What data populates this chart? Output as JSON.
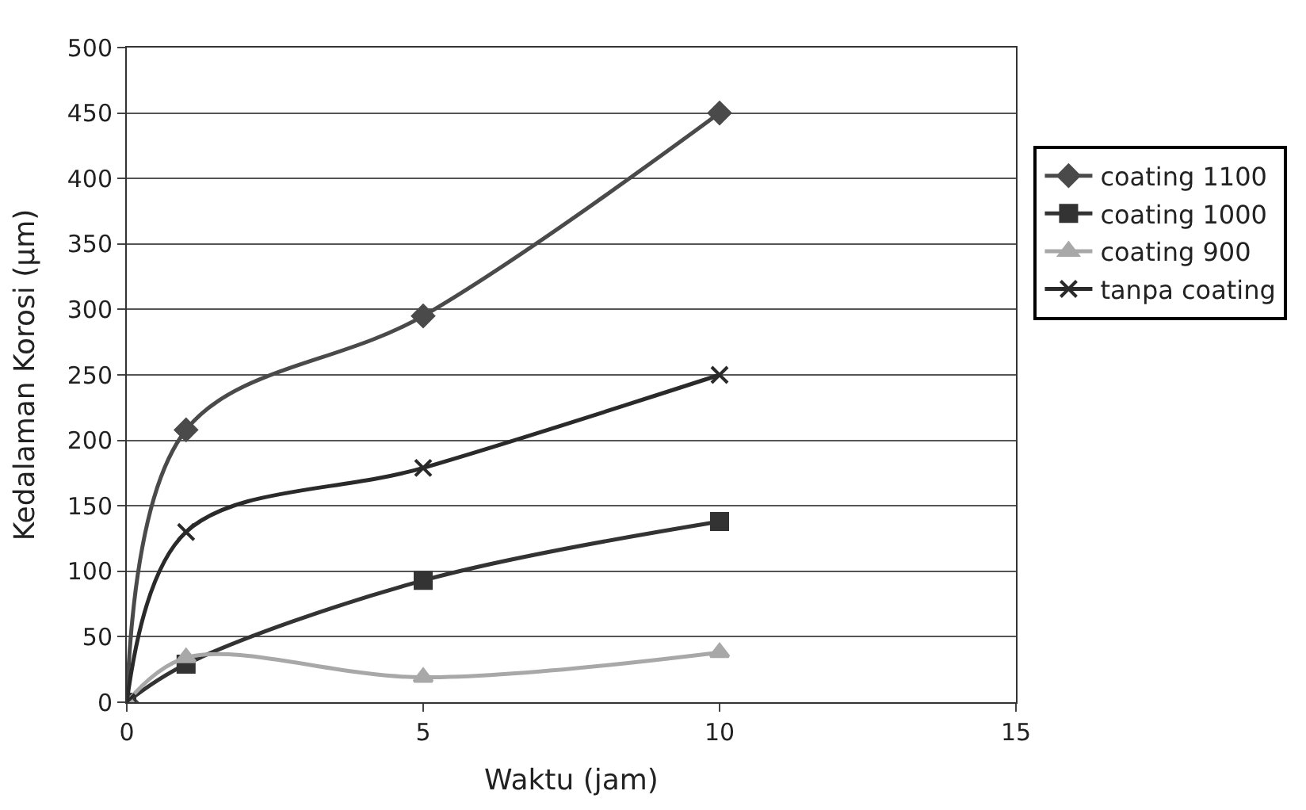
{
  "chart_data": {
    "type": "line",
    "xlabel": "Waktu (jam)",
    "ylabel": "Kedalaman Korosi (µm)",
    "x": [
      0,
      1,
      5,
      10
    ],
    "series": [
      {
        "name": "coating 1100",
        "color": "#4a4a4a",
        "marker": "diamond",
        "values": [
          0,
          208,
          295,
          450
        ]
      },
      {
        "name": "coating 1000",
        "color": "#333333",
        "marker": "square",
        "values": [
          0,
          29,
          93,
          138
        ]
      },
      {
        "name": "coating 900",
        "color": "#a8a8a8",
        "marker": "triangle",
        "values": [
          0,
          34,
          19,
          38
        ]
      },
      {
        "name": "tanpa coating",
        "color": "#2a2a2a",
        "marker": "cross",
        "values": [
          0,
          130,
          179,
          250
        ]
      }
    ],
    "xlim": [
      0,
      15
    ],
    "xticks": [
      0,
      5,
      10,
      15
    ],
    "ylim": [
      0,
      500
    ],
    "yticks": [
      0,
      50,
      100,
      150,
      200,
      250,
      300,
      350,
      400,
      450,
      500
    ],
    "grid": "y",
    "legend": "right"
  }
}
